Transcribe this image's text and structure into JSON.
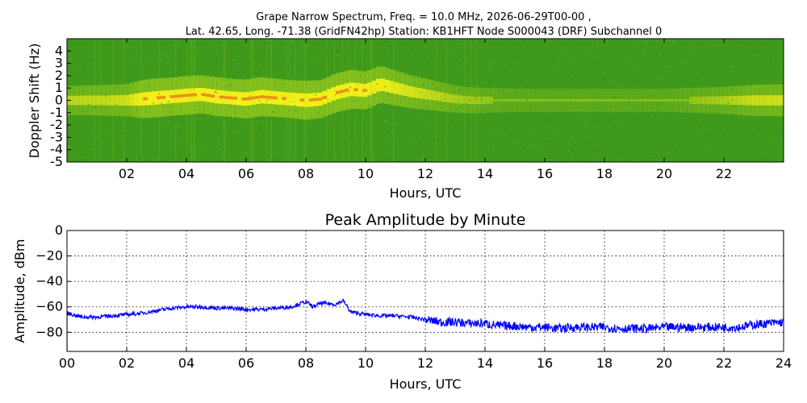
{
  "figure": {
    "title_line1": "Grape Narrow Spectrum, Freq. = 10.0 MHz, 2026-06-29T00-00 ,",
    "title_line2": "Lat.  42.65, Long. -71.38 (GridFN42hp) Station: KB1HFT Node S000043 (DRF) Subchannel 0"
  },
  "chart_data": [
    {
      "type": "heatmap",
      "title": "",
      "xlabel": "Hours, UTC",
      "ylabel": "Doppler Shift (Hz)",
      "xlim": [
        0,
        24
      ],
      "ylim": [
        -5,
        5
      ],
      "x_ticks": [
        "02",
        "04",
        "06",
        "08",
        "10",
        "12",
        "14",
        "16",
        "18",
        "20",
        "22"
      ],
      "y_ticks": [
        "4",
        "3",
        "2",
        "1",
        "0",
        "-1",
        "-2",
        "-3",
        "-4",
        "-5"
      ],
      "colors": {
        "background": "#3f9a1c",
        "mid": "#a6d21e",
        "high": "#f2ef1a",
        "peak": "#e8401c"
      },
      "ridge": {
        "hours": [
          0,
          1,
          2,
          2.5,
          3,
          3.5,
          4,
          4.5,
          5,
          5.5,
          6,
          6.5,
          7,
          7.5,
          8,
          8.5,
          9,
          9.5,
          10,
          10.5,
          11,
          11.5,
          12,
          12.5,
          13,
          13.5,
          14,
          14.5,
          15,
          16,
          18,
          20,
          22,
          23,
          24
        ],
        "doppler_hz": [
          0,
          0,
          0,
          0.1,
          0.2,
          0.3,
          0.4,
          0.5,
          0.3,
          0.2,
          0.1,
          0.3,
          0.2,
          0.1,
          0.0,
          0.1,
          0.6,
          0.9,
          0.8,
          1.3,
          1.0,
          0.7,
          0.5,
          0.3,
          0.1,
          0.0,
          0.0,
          0.0,
          0.0,
          0.0,
          0.0,
          0.0,
          0.0,
          0.0,
          0.0
        ],
        "strength": [
          0.35,
          0.4,
          0.5,
          0.8,
          0.85,
          0.8,
          0.85,
          0.8,
          0.85,
          0.8,
          0.85,
          0.85,
          0.8,
          0.8,
          0.85,
          0.8,
          0.85,
          0.85,
          0.8,
          0.75,
          0.65,
          0.55,
          0.45,
          0.35,
          0.25,
          0.2,
          0.15,
          0.1,
          0.05,
          0.03,
          0.03,
          0.03,
          0.25,
          0.45,
          0.5
        ]
      }
    },
    {
      "type": "line",
      "title": "Peak Amplitude by Minute",
      "xlabel": "Hours, UTC",
      "ylabel": "Amplitude, dBm",
      "xlim": [
        0,
        24
      ],
      "ylim": [
        -80,
        0
      ],
      "grid": true,
      "color": "#0000ff",
      "x_ticks": [
        "00",
        "02",
        "04",
        "06",
        "08",
        "10",
        "12",
        "14",
        "16",
        "18",
        "20",
        "22",
        "24"
      ],
      "y_ticks": [
        "0",
        "-20",
        "-40",
        "-60",
        "-80"
      ],
      "series": [
        {
          "x": [
            0,
            0.5,
            1,
            1.5,
            2,
            2.5,
            3,
            3.5,
            4,
            4.5,
            5,
            5.5,
            6,
            6.5,
            7,
            7.5,
            8,
            8.25,
            8.5,
            9,
            9.25,
            9.5,
            10,
            10.5,
            11,
            11.5,
            12,
            12.5,
            13,
            13.5,
            14,
            14.5,
            15,
            15.5,
            16,
            16.5,
            17,
            17.5,
            18,
            18.5,
            19,
            19.5,
            20,
            20.5,
            21,
            21.5,
            22,
            22.5,
            23,
            23.5,
            24
          ],
          "values": [
            -65,
            -68,
            -68,
            -67,
            -66,
            -65,
            -63,
            -61,
            -60,
            -60,
            -61,
            -61,
            -62,
            -62,
            -61,
            -60,
            -56,
            -60,
            -57,
            -58,
            -55,
            -64,
            -66,
            -67,
            -67,
            -68,
            -70,
            -72,
            -72,
            -73,
            -73,
            -75,
            -75,
            -76,
            -76,
            -77,
            -76,
            -76,
            -76,
            -77,
            -77,
            -77,
            -76,
            -76,
            -76,
            -76,
            -76,
            -76,
            -74,
            -73,
            -72
          ]
        }
      ]
    }
  ]
}
